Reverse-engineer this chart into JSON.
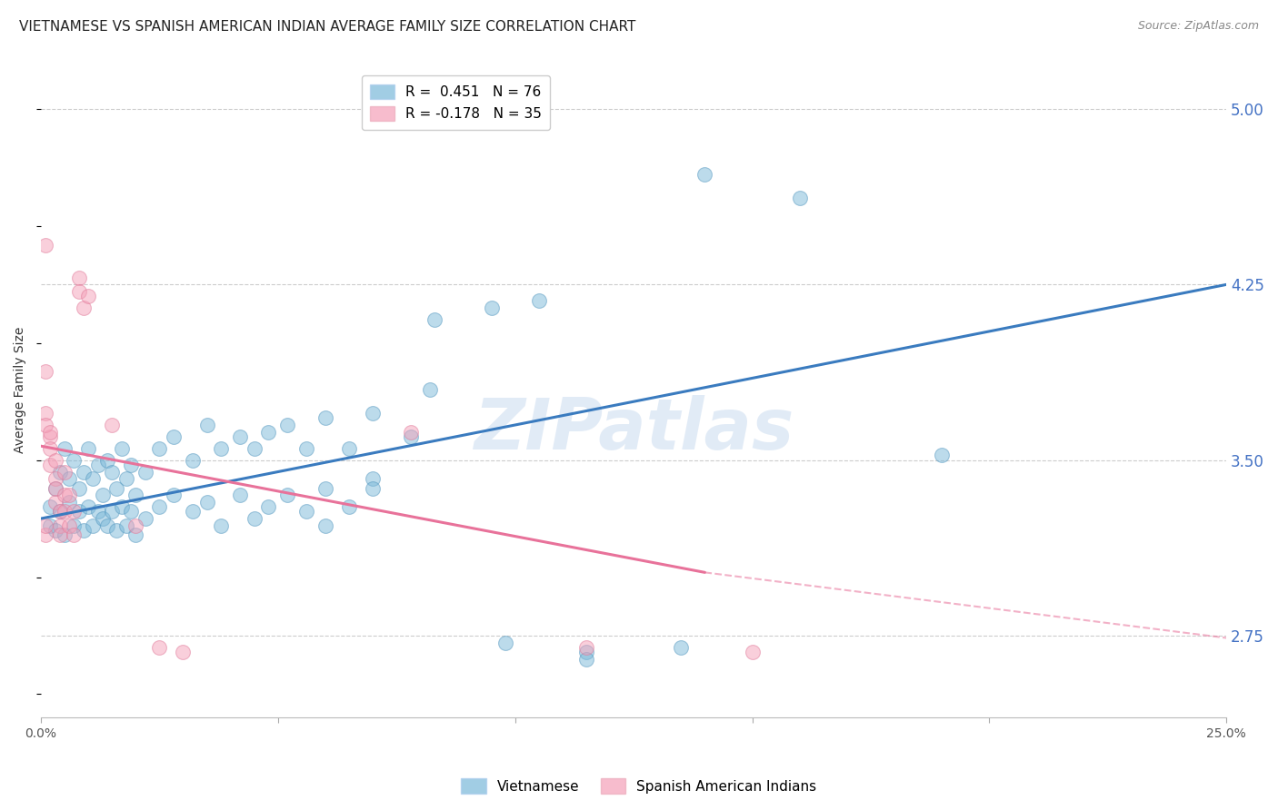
{
  "title": "VIETNAMESE VS SPANISH AMERICAN INDIAN AVERAGE FAMILY SIZE CORRELATION CHART",
  "source": "Source: ZipAtlas.com",
  "ylabel": "Average Family Size",
  "yticks": [
    2.75,
    3.5,
    4.25,
    5.0
  ],
  "ytick_color": "#4472c4",
  "xlim": [
    0.0,
    0.25
  ],
  "ylim": [
    2.4,
    5.2
  ],
  "watermark": "ZIPatlas",
  "blue_line": {
    "x0": 0.0,
    "y0": 3.25,
    "x1": 0.25,
    "y1": 4.25
  },
  "blue_line_color": "#3a7bbf",
  "pink_line_solid": {
    "x0": 0.0,
    "y0": 3.56,
    "x1": 0.14,
    "y1": 3.02
  },
  "pink_line_dashed": {
    "x0": 0.14,
    "y0": 3.02,
    "x1": 0.25,
    "y1": 2.74
  },
  "pink_line_color": "#e8729a",
  "blue_points": [
    [
      0.002,
      3.22
    ],
    [
      0.002,
      3.3
    ],
    [
      0.003,
      3.38
    ],
    [
      0.003,
      3.2
    ],
    [
      0.004,
      3.45
    ],
    [
      0.004,
      3.28
    ],
    [
      0.005,
      3.55
    ],
    [
      0.005,
      3.18
    ],
    [
      0.006,
      3.42
    ],
    [
      0.006,
      3.32
    ],
    [
      0.007,
      3.5
    ],
    [
      0.007,
      3.22
    ],
    [
      0.008,
      3.38
    ],
    [
      0.008,
      3.28
    ],
    [
      0.009,
      3.45
    ],
    [
      0.009,
      3.2
    ],
    [
      0.01,
      3.55
    ],
    [
      0.01,
      3.3
    ],
    [
      0.011,
      3.42
    ],
    [
      0.011,
      3.22
    ],
    [
      0.012,
      3.48
    ],
    [
      0.012,
      3.28
    ],
    [
      0.013,
      3.35
    ],
    [
      0.013,
      3.25
    ],
    [
      0.014,
      3.5
    ],
    [
      0.014,
      3.22
    ],
    [
      0.015,
      3.45
    ],
    [
      0.015,
      3.28
    ],
    [
      0.016,
      3.38
    ],
    [
      0.016,
      3.2
    ],
    [
      0.017,
      3.55
    ],
    [
      0.017,
      3.3
    ],
    [
      0.018,
      3.42
    ],
    [
      0.018,
      3.22
    ],
    [
      0.019,
      3.48
    ],
    [
      0.019,
      3.28
    ],
    [
      0.02,
      3.35
    ],
    [
      0.02,
      3.18
    ],
    [
      0.022,
      3.45
    ],
    [
      0.022,
      3.25
    ],
    [
      0.025,
      3.55
    ],
    [
      0.025,
      3.3
    ],
    [
      0.028,
      3.6
    ],
    [
      0.028,
      3.35
    ],
    [
      0.032,
      3.5
    ],
    [
      0.032,
      3.28
    ],
    [
      0.035,
      3.65
    ],
    [
      0.035,
      3.32
    ],
    [
      0.038,
      3.55
    ],
    [
      0.038,
      3.22
    ],
    [
      0.042,
      3.6
    ],
    [
      0.042,
      3.35
    ],
    [
      0.045,
      3.55
    ],
    [
      0.045,
      3.25
    ],
    [
      0.048,
      3.62
    ],
    [
      0.048,
      3.3
    ],
    [
      0.052,
      3.65
    ],
    [
      0.052,
      3.35
    ],
    [
      0.056,
      3.55
    ],
    [
      0.056,
      3.28
    ],
    [
      0.06,
      3.68
    ],
    [
      0.06,
      3.38
    ],
    [
      0.065,
      3.55
    ],
    [
      0.065,
      3.3
    ],
    [
      0.07,
      3.7
    ],
    [
      0.07,
      3.42
    ],
    [
      0.078,
      3.6
    ],
    [
      0.083,
      4.1
    ],
    [
      0.095,
      4.15
    ],
    [
      0.105,
      4.18
    ],
    [
      0.07,
      3.38
    ],
    [
      0.06,
      3.22
    ],
    [
      0.14,
      4.72
    ],
    [
      0.16,
      4.62
    ],
    [
      0.19,
      3.52
    ],
    [
      0.098,
      2.72
    ],
    [
      0.115,
      2.68
    ],
    [
      0.135,
      2.7
    ],
    [
      0.115,
      2.65
    ],
    [
      0.082,
      3.8
    ]
  ],
  "pink_points": [
    [
      0.001,
      3.18
    ],
    [
      0.001,
      3.22
    ],
    [
      0.002,
      3.6
    ],
    [
      0.002,
      3.55
    ],
    [
      0.002,
      3.48
    ],
    [
      0.003,
      3.42
    ],
    [
      0.003,
      3.38
    ],
    [
      0.003,
      3.32
    ],
    [
      0.004,
      3.28
    ],
    [
      0.004,
      3.22
    ],
    [
      0.004,
      3.18
    ],
    [
      0.005,
      3.45
    ],
    [
      0.005,
      3.35
    ],
    [
      0.005,
      3.28
    ],
    [
      0.006,
      3.22
    ],
    [
      0.006,
      3.35
    ],
    [
      0.007,
      3.28
    ],
    [
      0.007,
      3.18
    ],
    [
      0.008,
      4.28
    ],
    [
      0.008,
      4.22
    ],
    [
      0.009,
      4.15
    ],
    [
      0.01,
      4.2
    ],
    [
      0.001,
      3.88
    ],
    [
      0.001,
      3.7
    ],
    [
      0.001,
      3.65
    ],
    [
      0.002,
      3.62
    ],
    [
      0.003,
      3.5
    ],
    [
      0.015,
      3.65
    ],
    [
      0.02,
      3.22
    ],
    [
      0.001,
      4.42
    ],
    [
      0.025,
      2.7
    ],
    [
      0.03,
      2.68
    ],
    [
      0.078,
      3.62
    ],
    [
      0.115,
      2.7
    ],
    [
      0.15,
      2.68
    ]
  ],
  "grid_color": "#cccccc",
  "bg_color": "#ffffff",
  "title_fontsize": 11,
  "source_fontsize": 9,
  "ylabel_fontsize": 10,
  "axis_color": "#4472c4",
  "blue_dot_color": "#7ab8d9",
  "blue_dot_edge": "#5598bf",
  "pink_dot_color": "#f4a0b8",
  "pink_dot_edge": "#e07898"
}
